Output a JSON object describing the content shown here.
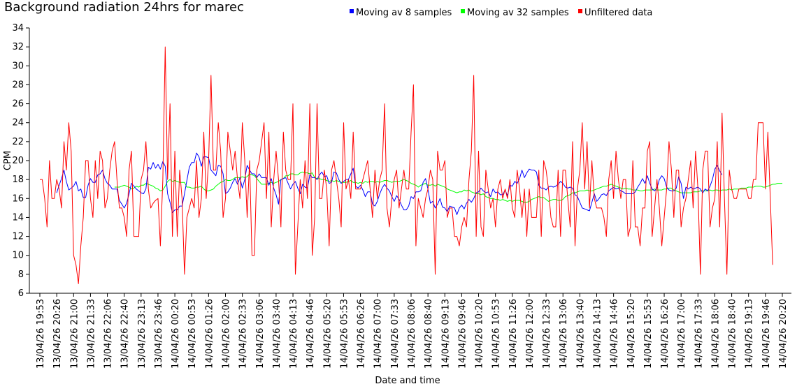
{
  "chart_data": {
    "type": "line",
    "title": "Background radiation 24hrs for marec",
    "xlabel": "Date and time",
    "ylabel": "CPM",
    "ylim": [
      6,
      34
    ],
    "yticks": [
      6,
      8,
      10,
      12,
      14,
      16,
      18,
      20,
      22,
      24,
      26,
      28,
      30,
      32,
      34
    ],
    "x_tick_labels": [
      "13/04/26 19:53",
      "13/04/26 20:26",
      "13/04/26 21:00",
      "13/04/26 21:33",
      "13/04/26 22:06",
      "13/04/26 22:40",
      "13/04/26 23:13",
      "13/04/26 23:46",
      "14/04/26 00:20",
      "14/04/26 00:53",
      "14/04/26 01:26",
      "14/04/26 02:00",
      "14/04/26 02:33",
      "14/04/26 03:06",
      "14/04/26 03:40",
      "14/04/26 04:13",
      "14/04/26 04:46",
      "14/04/26 05:20",
      "14/04/26 05:53",
      "14/04/26 06:26",
      "14/04/26 07:00",
      "14/04/26 07:33",
      "14/04/26 08:06",
      "14/04/26 08:40",
      "14/04/26 09:13",
      "14/04/26 09:46",
      "14/04/26 10:20",
      "14/04/26 10:53",
      "14/04/26 11:26",
      "14/04/26 12:00",
      "14/04/26 12:33",
      "14/04/26 13:06",
      "14/04/26 13:40",
      "14/04/26 14:13",
      "14/04/26 14:46",
      "14/04/26 15:20",
      "14/04/26 15:53",
      "14/04/26 16:26",
      "14/04/26 17:00",
      "14/04/26 17:33",
      "14/04/26 18:06",
      "14/04/26 18:40",
      "14/04/26 19:13",
      "14/04/26 19:46",
      "14/04/26 20:20"
    ],
    "grid": false,
    "legend_position": "top-right",
    "series": [
      {
        "name": "Moving av 8 samples",
        "color": "#0000ff",
        "start_index": 7,
        "values": [
          16.6,
          17.4,
          18.1,
          19.0,
          17.8,
          16.9,
          17.1,
          17.3,
          17.8,
          16.8,
          17.0,
          16.1,
          16.1,
          17.4,
          18.1,
          17.7,
          17.7,
          18.5,
          18.6,
          19.0,
          18.1,
          17.6,
          17.4,
          17.0,
          17.0,
          17.0,
          15.8,
          15.4,
          15.0,
          15.5,
          16.5,
          17.6,
          17.3,
          17.0,
          16.8,
          16.6,
          16.5,
          17.0,
          19.3,
          19.1,
          19.8,
          19.2,
          19.6,
          19.1,
          19.9,
          19.4,
          16.5,
          15.6,
          14.5,
          14.8,
          14.8,
          15.2,
          15.2,
          16.5,
          17.9,
          19.3,
          19.8,
          19.8,
          20.8,
          20.4,
          19.4,
          20.4,
          20.4,
          20.3,
          19.0,
          18.7,
          18.4,
          19.5,
          19.4,
          18.6,
          16.5,
          16.7,
          17.1,
          17.7,
          18.1,
          17.5,
          18.2,
          17.1,
          18.0,
          19.5,
          19.0,
          18.6,
          18.6,
          18.2,
          18.6,
          18.2,
          18.2,
          18.2,
          17.4,
          18.1,
          17.1,
          16.4,
          15.4,
          18.0,
          18.1,
          18.2,
          17.6,
          17.0,
          17.5,
          17.8,
          17.1,
          16.5,
          17.5,
          17.2,
          17.1,
          18.5,
          18.2,
          18.2,
          18.0,
          18.5,
          18.8,
          18.3,
          18.4,
          17.6,
          17.7,
          18.8,
          18.7,
          18.0,
          17.6,
          17.8,
          18.0,
          18.0,
          18.6,
          19.2,
          17.3,
          17.1,
          17.4,
          16.9,
          16.2,
          16.7,
          16.7,
          15.4,
          15.2,
          15.7,
          16.5,
          17.1,
          17.5,
          17.1,
          16.8,
          16.2,
          15.7,
          16.3,
          15.9,
          15.3,
          14.8,
          14.8,
          15.2,
          16.2,
          16.0,
          16.7,
          16.7,
          16.8,
          17.7,
          18.1,
          17.0,
          15.5,
          15.7,
          15.0,
          15.4,
          16.0,
          15.1,
          15.0,
          14.6,
          15.2,
          15.1,
          15.0,
          14.3,
          15.0,
          15.3,
          14.9,
          15.5,
          15.9,
          15.6,
          16.0,
          16.6,
          16.7,
          17.1,
          16.8,
          16.6,
          16.7,
          16.2,
          17.0,
          16.6,
          16.7,
          16.4,
          16.4,
          16.9,
          16.3,
          17.4,
          17.3,
          17.8,
          17.6,
          18.1,
          19.0,
          18.2,
          18.7,
          19.1,
          19.0,
          19.0,
          18.8,
          17.4,
          17.1,
          17.1,
          16.9,
          17.2,
          17.3,
          17.2,
          17.3,
          17.5,
          17.8,
          17.6,
          17.2,
          17.1,
          17.2,
          17.1,
          16.4,
          16.2,
          15.6,
          15.0,
          14.9,
          14.8,
          14.7,
          15.6,
          16.5,
          15.7,
          16.0,
          16.4,
          16.5,
          16.3,
          16.8,
          17.0,
          17.2,
          17.0,
          17.1,
          16.8,
          16.7,
          16.5,
          16.5,
          16.5,
          16.5,
          16.7,
          17.2,
          17.6,
          18.1,
          17.6,
          18.4,
          17.6,
          17.0,
          16.8,
          17.1,
          18.0,
          18.4,
          18.1,
          17.2,
          16.9,
          16.8,
          16.8,
          17.1,
          18.3,
          17.6,
          16.0,
          17.2,
          17.0,
          17.2,
          17.0,
          17.1,
          17.2,
          17.0,
          16.6,
          17.0,
          16.8,
          17.3,
          18.0,
          19.1,
          19.5,
          18.9,
          18.5
        ]
      },
      {
        "name": "Moving av 32 samples",
        "color": "#00ff00",
        "start_index": 31,
        "values": [
          17.2,
          17.2,
          17.2,
          17.3,
          17.4,
          17.3,
          17.2,
          17.0,
          17.1,
          17.3,
          17.2,
          17.4,
          17.4,
          17.6,
          17.5,
          17.4,
          17.3,
          17.1,
          17.0,
          16.8,
          16.9,
          17.3,
          17.8,
          18.0,
          17.8,
          17.9,
          17.8,
          17.7,
          17.7,
          17.7,
          17.2,
          17.2,
          17.1,
          17.1,
          17.2,
          17.2,
          17.3,
          17.0,
          16.8,
          16.8,
          16.9,
          17.0,
          17.3,
          17.5,
          17.7,
          17.8,
          18.0,
          17.9,
          17.9,
          18.0,
          18.2,
          18.2,
          18.2,
          18.3,
          18.2,
          18.3,
          18.6,
          18.5,
          18.4,
          18.1,
          17.8,
          17.5,
          17.5,
          17.5,
          17.6,
          17.7,
          17.6,
          17.7,
          17.8,
          18.0,
          18.1,
          18.4,
          18.4,
          18.6,
          18.6,
          18.5,
          18.5,
          18.7,
          18.8,
          18.7,
          18.7,
          18.6,
          18.7,
          18.2,
          18.1,
          18.1,
          18.0,
          18.0,
          17.9,
          17.8,
          17.9,
          17.8,
          17.9,
          17.8,
          17.7,
          17.7,
          17.7,
          17.8,
          17.9,
          17.7,
          17.7,
          17.6,
          17.7,
          17.6,
          17.8,
          17.7,
          17.8,
          17.8,
          17.7,
          17.8,
          17.7,
          17.8,
          17.9,
          17.9,
          17.8,
          17.7,
          17.8,
          17.8,
          17.8,
          17.9,
          18.0,
          17.9,
          17.8,
          17.6,
          17.5,
          17.4,
          17.2,
          17.4,
          17.5,
          17.6,
          17.4,
          17.4,
          17.5,
          17.3,
          17.5,
          17.4,
          17.3,
          17.2,
          17.0,
          16.9,
          16.8,
          16.7,
          16.6,
          16.7,
          16.7,
          16.9,
          16.8,
          16.9,
          16.7,
          16.6,
          16.5,
          16.5,
          16.4,
          16.5,
          16.2,
          16.1,
          16.0,
          16.0,
          15.9,
          15.9,
          15.8,
          15.9,
          15.8,
          15.7,
          15.8,
          15.7,
          15.8,
          15.8,
          15.8,
          15.7,
          15.6,
          15.6,
          15.7,
          15.9,
          16.0,
          16.1,
          16.2,
          16.1,
          16.1,
          15.9,
          15.7,
          15.8,
          15.9,
          15.9,
          15.8,
          15.8,
          15.9,
          16.2,
          16.3,
          16.4,
          16.6,
          16.6,
          16.7,
          16.8,
          16.8,
          16.8,
          16.9,
          16.8,
          16.8,
          16.9,
          17.0,
          17.1,
          17.2,
          17.3,
          17.3,
          17.4,
          17.5,
          17.4,
          17.3,
          17.2,
          17.1,
          17.0,
          17.1,
          17.0,
          17.0,
          16.9,
          16.9,
          16.9,
          16.8,
          16.8,
          16.9,
          16.9,
          16.9,
          16.9,
          17.0,
          16.9,
          16.9,
          16.9,
          17.0,
          17.0,
          17.1,
          17.1,
          16.9,
          16.8,
          16.7,
          16.6,
          16.6,
          16.6,
          16.6,
          16.6,
          16.7,
          16.7,
          16.7,
          16.8,
          16.8,
          16.8,
          16.8,
          16.9,
          16.8,
          16.9,
          16.9,
          16.8,
          16.9,
          16.9,
          16.9,
          17.0,
          16.9,
          17.0,
          17.0,
          17.0,
          17.1,
          17.1,
          17.1,
          17.2,
          17.2,
          17.2,
          17.3,
          17.3,
          17.3,
          17.2,
          17.2,
          17.3,
          17.4,
          17.5,
          17.5,
          17.6,
          17.6,
          17.6
        ]
      },
      {
        "name": "Unfiltered data",
        "color": "#ff0000",
        "start_index": 0,
        "values": [
          18,
          18,
          16,
          13,
          20,
          16,
          16,
          18,
          17,
          15,
          22,
          19,
          24,
          21,
          10,
          9,
          7,
          11,
          14,
          20,
          20,
          16,
          14,
          20,
          16,
          21,
          20,
          15,
          16,
          19,
          21,
          22,
          18,
          15,
          15,
          14,
          12,
          19,
          21,
          12,
          12,
          12,
          18,
          19,
          22,
          17,
          15,
          15.5,
          15.8,
          16,
          11,
          18,
          32,
          18,
          26,
          12,
          21,
          12,
          19,
          16,
          8,
          14,
          15,
          16,
          15,
          20,
          14,
          16,
          23,
          16,
          20,
          29,
          19,
          19,
          24,
          21,
          14,
          16,
          23,
          21,
          19,
          21,
          18,
          16,
          24,
          20,
          14,
          20,
          10,
          10,
          19,
          20,
          22,
          24,
          16,
          23,
          13,
          18,
          21,
          18,
          13,
          23,
          19,
          18,
          18,
          26,
          8,
          13,
          18,
          15,
          20,
          16,
          26,
          10,
          14,
          26,
          16,
          16,
          19,
          17,
          11,
          19,
          20,
          18,
          16,
          13,
          24,
          17,
          18,
          16,
          23,
          17,
          17,
          17,
          18,
          19,
          20,
          17,
          14,
          19,
          16,
          18,
          19,
          26,
          15,
          13,
          16,
          18,
          19,
          15,
          17,
          19,
          17,
          17,
          23,
          28,
          11,
          16,
          15,
          14,
          16,
          17,
          19,
          18,
          8,
          21,
          19,
          19,
          20,
          14,
          15,
          15,
          12,
          12,
          11,
          13,
          14,
          13,
          18,
          21,
          29,
          12,
          21,
          13,
          12,
          19,
          17,
          15,
          16,
          13,
          17,
          18,
          16,
          17,
          16,
          18,
          15,
          14,
          19,
          17,
          14,
          17,
          12,
          17,
          14,
          14,
          14,
          19,
          12,
          20,
          19,
          17,
          14,
          13,
          13,
          19,
          12,
          19,
          19,
          16,
          13,
          22,
          11,
          17,
          19,
          24,
          17,
          22,
          15,
          20,
          16,
          15,
          15,
          15,
          14,
          12,
          18,
          20,
          16,
          21,
          18,
          16,
          18,
          18,
          12,
          13,
          20,
          13,
          13,
          11,
          15,
          15,
          21,
          22,
          12,
          15,
          18,
          15,
          11,
          14,
          17,
          22,
          19,
          14,
          19,
          19,
          13,
          15,
          16,
          18,
          20,
          15,
          21,
          17,
          8,
          19,
          21,
          21,
          13,
          15,
          16,
          22,
          13,
          25,
          16,
          8,
          19,
          17,
          16,
          16,
          17,
          17,
          17,
          17,
          16,
          16,
          18,
          18,
          24,
          24,
          24,
          17,
          23,
          16,
          9
        ]
      }
    ]
  }
}
